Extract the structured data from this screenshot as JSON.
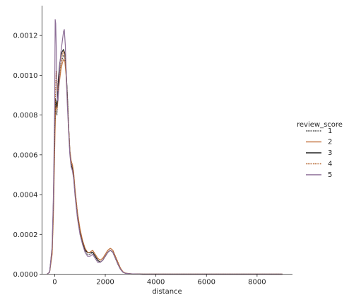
{
  "chart_data": {
    "type": "line",
    "title": "",
    "xlabel": "distance",
    "ylabel": "",
    "xlim": [
      -500,
      9400
    ],
    "ylim": [
      0,
      0.00135
    ],
    "x_ticks": [
      0,
      2000,
      4000,
      6000,
      8000
    ],
    "x_tick_labels": [
      "0",
      "2000",
      "4000",
      "6000",
      "8000"
    ],
    "y_ticks": [
      0,
      0.0002,
      0.0004,
      0.0006,
      0.0008,
      0.001,
      0.0012
    ],
    "y_tick_labels": [
      "0.0000",
      "0.0002",
      "0.0004",
      "0.0006",
      "0.0008",
      "0.0010",
      "0.0012"
    ],
    "grid": false,
    "legend": {
      "title": "review_score",
      "placement": "right",
      "entries": [
        "1",
        "2",
        "3",
        "4",
        "5"
      ]
    },
    "series": [
      {
        "name": "1",
        "color": "#4d4d4d",
        "dash": "1.5,1",
        "x": [
          -300,
          -200,
          -100,
          -50,
          0,
          30,
          60,
          90,
          120,
          150,
          200,
          250,
          300,
          350,
          400,
          450,
          500,
          550,
          600,
          650,
          700,
          750,
          800,
          900,
          1000,
          1100,
          1200,
          1300,
          1400,
          1500,
          1600,
          1700,
          1800,
          1900,
          2000,
          2100,
          2200,
          2300,
          2400,
          2500,
          2600,
          2700,
          2800,
          3000,
          3200,
          3500,
          4000,
          5000,
          6000,
          7000,
          8000,
          9000
        ],
        "y": [
          0,
          1e-05,
          0.00012,
          0.00034,
          0.00068,
          0.00085,
          0.00082,
          0.0008,
          0.00088,
          0.00095,
          0.00102,
          0.00106,
          0.00108,
          0.0011,
          0.00109,
          0.00102,
          0.0009,
          0.00075,
          0.00062,
          0.00056,
          0.00054,
          0.0005,
          0.00042,
          0.0003,
          0.00022,
          0.00016,
          0.00012,
          0.0001,
          0.0001,
          0.00011,
          9e-05,
          7e-05,
          6e-05,
          7e-05,
          9e-05,
          0.00011,
          0.00012,
          0.00011,
          8e-05,
          5e-05,
          2.5e-05,
          1e-05,
          5e-06,
          2e-06,
          1e-06,
          0,
          0,
          0,
          0,
          0,
          0,
          0
        ]
      },
      {
        "name": "2",
        "color": "#c87f4f",
        "dash": "",
        "x": [
          -300,
          -200,
          -100,
          -50,
          0,
          30,
          60,
          90,
          120,
          150,
          200,
          250,
          300,
          350,
          400,
          450,
          500,
          550,
          600,
          650,
          700,
          750,
          800,
          900,
          1000,
          1100,
          1200,
          1300,
          1400,
          1500,
          1600,
          1700,
          1800,
          1900,
          2000,
          2100,
          2200,
          2300,
          2400,
          2500,
          2600,
          2700,
          2800,
          3000,
          3200,
          3500,
          4000,
          5000,
          6000,
          7000,
          8000,
          9000
        ],
        "y": [
          0,
          1e-05,
          0.0001,
          0.0003,
          0.00062,
          0.0008,
          0.00085,
          0.00083,
          0.00086,
          0.00092,
          0.00098,
          0.00103,
          0.00106,
          0.00108,
          0.00107,
          0.001,
          0.00088,
          0.00074,
          0.00062,
          0.00057,
          0.00055,
          0.00051,
          0.00043,
          0.00031,
          0.00023,
          0.00017,
          0.00013,
          0.00011,
          0.00011,
          0.00012,
          0.0001,
          8e-05,
          7e-05,
          8e-05,
          0.0001,
          0.00012,
          0.00013,
          0.00012,
          9e-05,
          6e-05,
          3e-05,
          1.2e-05,
          5e-06,
          2e-06,
          1e-06,
          0,
          0,
          0,
          0,
          0,
          0,
          0
        ]
      },
      {
        "name": "3",
        "color": "#222222",
        "dash": "",
        "x": [
          -300,
          -200,
          -100,
          -50,
          0,
          30,
          60,
          90,
          120,
          150,
          200,
          250,
          300,
          350,
          400,
          450,
          500,
          550,
          600,
          650,
          700,
          750,
          800,
          900,
          1000,
          1100,
          1200,
          1300,
          1400,
          1500,
          1600,
          1700,
          1800,
          1900,
          2000,
          2100,
          2200,
          2300,
          2400,
          2500,
          2600,
          2700,
          2800,
          3000,
          3200,
          3500,
          4000,
          5000,
          6000,
          7000,
          8000,
          9000
        ],
        "y": [
          0,
          1e-05,
          0.00013,
          0.00036,
          0.00072,
          0.00088,
          0.00086,
          0.00084,
          0.00091,
          0.00099,
          0.00106,
          0.0011,
          0.00112,
          0.00113,
          0.00111,
          0.00103,
          0.0009,
          0.00074,
          0.00061,
          0.00055,
          0.00053,
          0.00049,
          0.00041,
          0.00029,
          0.00021,
          0.00016,
          0.00012,
          0.00011,
          0.00011,
          0.00011,
          9e-05,
          7e-05,
          6e-05,
          7e-05,
          9e-05,
          0.00011,
          0.00012,
          0.00011,
          8e-05,
          5e-05,
          2.5e-05,
          1e-05,
          4e-06,
          2e-06,
          1e-06,
          0,
          0,
          0,
          0,
          0,
          0,
          0
        ]
      },
      {
        "name": "4",
        "color": "#b5652e",
        "dash": "1.5,1",
        "x": [
          -300,
          -200,
          -100,
          -50,
          0,
          30,
          60,
          90,
          120,
          150,
          200,
          250,
          300,
          350,
          400,
          450,
          500,
          550,
          600,
          650,
          700,
          750,
          800,
          900,
          1000,
          1100,
          1200,
          1300,
          1400,
          1500,
          1600,
          1700,
          1800,
          1900,
          2000,
          2100,
          2200,
          2300,
          2400,
          2500,
          2600,
          2700,
          2800,
          3000,
          3200,
          3500,
          4000,
          5000,
          6000,
          7000,
          8000,
          9000
        ],
        "y": [
          0,
          1e-05,
          0.00011,
          0.00033,
          0.0007,
          0.0009,
          0.00102,
          0.00098,
          0.00092,
          0.00094,
          0.001,
          0.00106,
          0.0011,
          0.00112,
          0.0011,
          0.00101,
          0.00088,
          0.00074,
          0.00062,
          0.00057,
          0.00055,
          0.00051,
          0.00043,
          0.00031,
          0.00022,
          0.00017,
          0.00013,
          0.00011,
          0.00011,
          0.00012,
          0.0001,
          8e-05,
          7e-05,
          8e-05,
          0.0001,
          0.00012,
          0.00013,
          0.00012,
          9e-05,
          6e-05,
          3e-05,
          1.2e-05,
          5e-06,
          2e-06,
          1e-06,
          0,
          0,
          0,
          0,
          0,
          0,
          0
        ]
      },
      {
        "name": "5",
        "color": "#8c6d96",
        "dash": "",
        "x": [
          -300,
          -200,
          -100,
          -50,
          0,
          20,
          40,
          60,
          80,
          100,
          130,
          160,
          200,
          250,
          300,
          350,
          380,
          420,
          460,
          500,
          550,
          600,
          650,
          700,
          750,
          800,
          900,
          1000,
          1100,
          1200,
          1300,
          1400,
          1500,
          1600,
          1700,
          1800,
          1900,
          2000,
          2100,
          2200,
          2300,
          2400,
          2500,
          2600,
          2700,
          2800,
          3000,
          3200,
          3500,
          4000,
          5000,
          6000,
          7000,
          8000,
          9000
        ],
        "y": [
          0,
          1e-05,
          0.00014,
          0.0004,
          0.00085,
          0.00128,
          0.00126,
          0.00115,
          0.001,
          0.00088,
          0.00087,
          0.00093,
          0.00105,
          0.00112,
          0.00117,
          0.00122,
          0.00123,
          0.00115,
          0.001,
          0.00085,
          0.00072,
          0.0006,
          0.00054,
          0.00052,
          0.00048,
          0.0004,
          0.00028,
          0.0002,
          0.00015,
          0.00011,
          9e-05,
          9e-05,
          0.0001,
          8e-05,
          6e-05,
          6e-05,
          7e-05,
          9e-05,
          0.00011,
          0.00012,
          0.00011,
          8e-05,
          5e-05,
          2.5e-05,
          1e-05,
          4e-06,
          2e-06,
          1e-06,
          0,
          0,
          0,
          0,
          0,
          0,
          0
        ]
      }
    ]
  }
}
